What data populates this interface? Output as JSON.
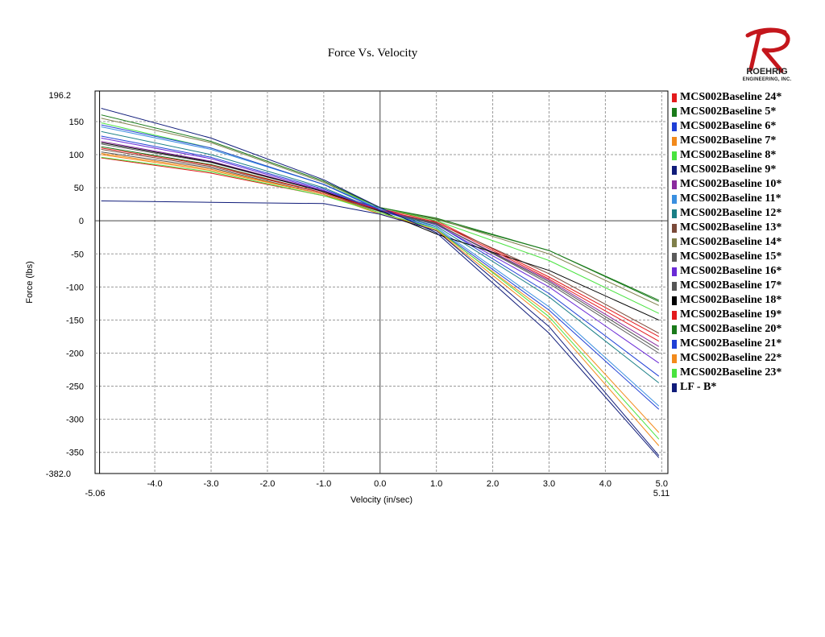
{
  "page": {
    "title": "Force Vs. Velocity"
  },
  "logo": {
    "name": "ROEHRIG",
    "sub": "ENGINEERING, INC."
  },
  "chart_data": {
    "type": "line",
    "title": "Force Vs. Velocity",
    "xlabel": "Velocity (in/sec)",
    "ylabel": "Force (lbs)",
    "xlim": [
      -5.06,
      5.11
    ],
    "ylim": [
      -382.0,
      196.2
    ],
    "x_ticks": [
      -4,
      -3,
      -2,
      -1,
      0,
      1,
      2,
      3,
      4,
      5
    ],
    "x_tick_labels": [
      "-4.0",
      "-3.0",
      "-2.0",
      "-1.0",
      "0.0",
      "1.0",
      "2.0",
      "3.0",
      "4.0",
      "5.0"
    ],
    "x_min_label": "-5.06",
    "x_max_label": "5.11",
    "y_ticks": [
      150,
      100,
      50,
      0,
      -50,
      -100,
      -150,
      -200,
      -250,
      -300,
      -350
    ],
    "y_tick_labels": [
      "150",
      "100",
      "50",
      "0",
      "-50",
      "-100",
      "-150",
      "-200",
      "-250",
      "-300",
      "-350"
    ],
    "y_max_label": "196.2",
    "y_min_label": "-382.0",
    "grid": true,
    "legend_position": "right",
    "series": [
      {
        "name": "MCS002Baseline 24*",
        "color": "#e31a1c",
        "x": [
          -4.95,
          -3,
          -1,
          0,
          1,
          3,
          4.95
        ],
        "y": [
          95,
          72,
          38,
          18,
          0,
          -85,
          -175
        ]
      },
      {
        "name": "MCS002Baseline 5*",
        "color": "#1a7a1a",
        "x": [
          -4.95,
          -3,
          -1,
          0,
          1,
          3,
          4.95
        ],
        "y": [
          112,
          85,
          42,
          20,
          2,
          -45,
          -120
        ]
      },
      {
        "name": "MCS002Baseline 6*",
        "color": "#1f3fd6",
        "x": [
          -4.95,
          -3,
          -1,
          0,
          1,
          3,
          4.95
        ],
        "y": [
          128,
          96,
          48,
          15,
          -5,
          -110,
          -235
        ]
      },
      {
        "name": "MCS002Baseline 7*",
        "color": "#f28a1b",
        "x": [
          -4.95,
          -3,
          -1,
          0,
          1,
          3,
          4.95
        ],
        "y": [
          100,
          76,
          40,
          10,
          -15,
          -150,
          -340
        ]
      },
      {
        "name": "MCS002Baseline 8*",
        "color": "#49e33f",
        "x": [
          -4.95,
          -3,
          -1,
          0,
          1,
          3,
          4.95
        ],
        "y": [
          148,
          110,
          55,
          20,
          0,
          -60,
          -140
        ]
      },
      {
        "name": "MCS002Baseline 9*",
        "color": "#101c7a",
        "x": [
          -4.95,
          -3,
          -1,
          0,
          1,
          3,
          4.95
        ],
        "y": [
          30,
          28,
          26,
          10,
          -15,
          -160,
          -355
        ]
      },
      {
        "name": "MCS002Baseline 10*",
        "color": "#8a2a9e",
        "x": [
          -4.95,
          -3,
          -1,
          0,
          1,
          3,
          4.95
        ],
        "y": [
          120,
          90,
          45,
          18,
          -5,
          -90,
          -190
        ]
      },
      {
        "name": "MCS002Baseline 11*",
        "color": "#3a8fe0",
        "x": [
          -4.95,
          -3,
          -1,
          0,
          1,
          3,
          4.95
        ],
        "y": [
          142,
          108,
          55,
          18,
          -10,
          -130,
          -280
        ]
      },
      {
        "name": "MCS002Baseline 12*",
        "color": "#1a7f86",
        "x": [
          -4.95,
          -3,
          -1,
          0,
          1,
          3,
          4.95
        ],
        "y": [
          135,
          100,
          50,
          15,
          -8,
          -115,
          -245
        ]
      },
      {
        "name": "MCS002Baseline 13*",
        "color": "#7a4a3a",
        "x": [
          -4.95,
          -3,
          -1,
          0,
          1,
          3,
          4.95
        ],
        "y": [
          108,
          82,
          42,
          15,
          -3,
          -80,
          -170
        ]
      },
      {
        "name": "MCS002Baseline 14*",
        "color": "#7f7f4a",
        "x": [
          -4.95,
          -3,
          -1,
          0,
          1,
          3,
          4.95
        ],
        "y": [
          155,
          118,
          58,
          20,
          3,
          -50,
          -128
        ]
      },
      {
        "name": "MCS002Baseline 15*",
        "color": "#5a5a5a",
        "x": [
          -4.95,
          -3,
          -1,
          0,
          1,
          3,
          4.95
        ],
        "y": [
          116,
          88,
          44,
          16,
          -4,
          -95,
          -200
        ]
      },
      {
        "name": "MCS002Baseline 16*",
        "color": "#6a2ad6",
        "x": [
          -4.95,
          -3,
          -1,
          0,
          1,
          3,
          4.95
        ],
        "y": [
          125,
          94,
          46,
          16,
          -6,
          -100,
          -215
        ]
      },
      {
        "name": "MCS002Baseline 17*",
        "color": "#555555",
        "x": [
          -4.95,
          -3,
          -1,
          0,
          1,
          3,
          4.95
        ],
        "y": [
          104,
          80,
          40,
          14,
          -5,
          -92,
          -195
        ]
      },
      {
        "name": "MCS002Baseline 18*",
        "color": "#000000",
        "x": [
          -4.95,
          -3,
          -1,
          0,
          1,
          3,
          4.95
        ],
        "y": [
          118,
          89,
          44,
          15,
          -20,
          -75,
          -150
        ]
      },
      {
        "name": "MCS002Baseline 19*",
        "color": "#e31a1c",
        "x": [
          -4.95,
          -3,
          -1,
          0,
          1,
          3,
          4.95
        ],
        "y": [
          110,
          84,
          42,
          16,
          -2,
          -88,
          -182
        ]
      },
      {
        "name": "MCS002Baseline 20*",
        "color": "#1a7a1a",
        "x": [
          -4.95,
          -3,
          -1,
          0,
          1,
          3,
          4.95
        ],
        "y": [
          160,
          120,
          60,
          20,
          4,
          -45,
          -122
        ]
      },
      {
        "name": "MCS002Baseline 21*",
        "color": "#1f3fd6",
        "x": [
          -4.95,
          -3,
          -1,
          0,
          1,
          3,
          4.95
        ],
        "y": [
          145,
          110,
          55,
          16,
          -12,
          -135,
          -285
        ]
      },
      {
        "name": "MCS002Baseline 22*",
        "color": "#f28a1b",
        "x": [
          -4.95,
          -3,
          -1,
          0,
          1,
          3,
          4.95
        ],
        "y": [
          102,
          78,
          40,
          12,
          -14,
          -140,
          -320
        ]
      },
      {
        "name": "MCS002Baseline 23*",
        "color": "#49e33f",
        "x": [
          -4.95,
          -3,
          -1,
          0,
          1,
          3,
          4.95
        ],
        "y": [
          96,
          74,
          38,
          12,
          -12,
          -145,
          -330
        ]
      },
      {
        "name": "LF - B*",
        "color": "#101c7a",
        "x": [
          -4.95,
          -3,
          -1,
          0,
          1,
          3,
          4.95
        ],
        "y": [
          170,
          125,
          62,
          20,
          -18,
          -170,
          -358
        ]
      }
    ]
  }
}
